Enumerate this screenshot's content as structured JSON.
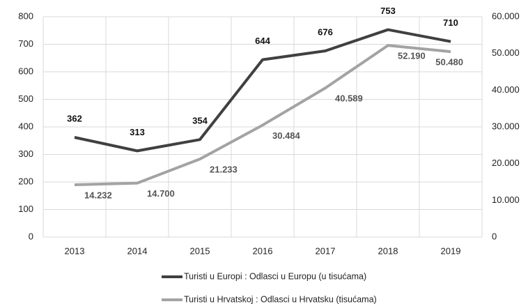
{
  "chart_data": {
    "type": "line",
    "categories": [
      "2013",
      "2014",
      "2015",
      "2016",
      "2017",
      "2018",
      "2019"
    ],
    "series": [
      {
        "name": "Turisti u Europi  : Odlasci u Europu (u tisućama)",
        "color": "#404040",
        "values": [
          362,
          313,
          354,
          644,
          676,
          753,
          710
        ]
      },
      {
        "name": "Turisti u Hrvatskoj :  Odlasci u Hrvatsku (tisućama)",
        "color": "#a3a3a3",
        "axis": "y2",
        "values": [
          14232,
          14700,
          21233,
          30484,
          40589,
          52190,
          50480
        ],
        "value_labels": [
          "14.232",
          "14.700",
          "21.233",
          "30.484",
          "40.589",
          "52.190",
          "50.480"
        ]
      }
    ],
    "ylim": [
      0,
      800
    ],
    "yticks": [
      0,
      100,
      200,
      300,
      400,
      500,
      600,
      700,
      800
    ],
    "y2lim": [
      0,
      60000
    ],
    "y2ticks": [
      0,
      {
        "value": 10000,
        "label": "10.000"
      },
      {
        "value": 20000,
        "label": "20.000"
      },
      {
        "value": 30000,
        "label": "30.000"
      },
      {
        "value": 40000,
        "label": "40.000"
      },
      {
        "value": 50000,
        "label": "50.000"
      },
      {
        "value": 60000,
        "label": "60.000"
      }
    ],
    "grid": true
  }
}
